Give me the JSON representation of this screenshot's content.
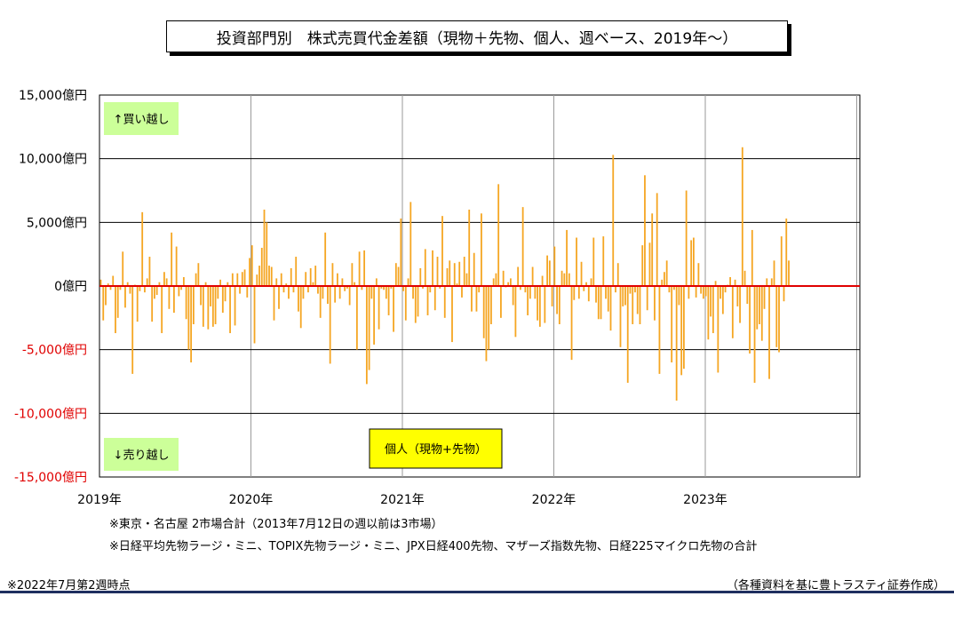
{
  "title": "投資部門別　株式売買代金差額（現物＋先物、個人、週ベース、2019年～）",
  "notes": {
    "note1": "※東京・名古屋 2市場合計（2013年7月12日の週以前は3市場）",
    "note2": "※日経平均先物ラージ・ミニ、TOPIX先物ラージ・ミニ、JPX日経400先物、マザーズ指数先物、日経225マイクロ先物の合計",
    "bottom_left": "※2022年7月第2週時点",
    "bottom_right": "（各種資料を基に豊トラスティ証券作成）"
  },
  "colors": {
    "bar": "#F5A623",
    "zero_line": "#E00000",
    "negative_label": "#E00000",
    "positive_label": "#000000",
    "buy_box": "#CCFF99",
    "series_box": "#FFFF00",
    "grid": "#000000"
  },
  "chart_data": {
    "type": "bar",
    "series": [
      {
        "name": "個人（現物+先物）"
      }
    ],
    "ylim": [
      -15000,
      15000
    ],
    "y_ticks": [
      {
        "value": 15000,
        "label": "15,000億円"
      },
      {
        "value": 10000,
        "label": "10,000億円"
      },
      {
        "value": 5000,
        "label": "5,000億円"
      },
      {
        "value": 0,
        "label": "0億円"
      },
      {
        "value": -5000,
        "label": "-5,000億円"
      },
      {
        "value": -10000,
        "label": "-10,000億円"
      },
      {
        "value": -15000,
        "label": "-15,000億円"
      }
    ],
    "x_ticks": [
      "2019年",
      "2020年",
      "2021年",
      "2022年",
      "2023年"
    ],
    "x_unit": "週",
    "annotations": {
      "buy": "↑買い越し",
      "sell": "↓売り越し",
      "series_label": "個人（現物+先物）"
    },
    "values": [
      500,
      -2700,
      -1500,
      200,
      -300,
      800,
      -3700,
      -2500,
      -300,
      2700,
      -1700,
      300,
      -600,
      -6900,
      100,
      -2800,
      -400,
      5800,
      -500,
      600,
      2300,
      -2800,
      -1000,
      -700,
      300,
      -3700,
      1100,
      600,
      -1800,
      4200,
      -2100,
      3100,
      -800,
      -300,
      700,
      -2600,
      -5000,
      -6000,
      -3000,
      1000,
      1800,
      -1500,
      -3200,
      300,
      -3400,
      -1600,
      -3200,
      -3000,
      -1000,
      500,
      -2100,
      -1200,
      300,
      -3700,
      1000,
      -3100,
      1000,
      -600,
      1100,
      1300,
      -900,
      2200,
      3200,
      -4500,
      900,
      1600,
      3000,
      6000,
      5000,
      1600,
      1500,
      -2700,
      600,
      -1800,
      1000,
      -500,
      200,
      -1000,
      1400,
      -500,
      2300,
      -2000,
      -3300,
      -1000,
      1100,
      -500,
      1400,
      300,
      1600,
      -600,
      -2500,
      -1000,
      4200,
      -1400,
      -6100,
      1800,
      -1300,
      1000,
      -1000,
      600,
      -400,
      -200,
      -1500,
      1800,
      300,
      -5000,
      2700,
      -300,
      2800,
      -7700,
      -6600,
      -1000,
      -4600,
      600,
      -3400,
      -200,
      -300,
      -1000,
      -2300,
      -200,
      -3600,
      1800,
      1500,
      5300,
      -400,
      -2700,
      600,
      6600,
      -1000,
      -2900,
      -2400,
      1400,
      -200,
      2900,
      -2300,
      -500,
      2800,
      -1900,
      2300,
      -200,
      5500,
      -2500,
      1400,
      2000,
      -4400,
      1800,
      200,
      1900,
      -900,
      2300,
      1000,
      6000,
      -2000,
      2600,
      -2000,
      -500,
      5700,
      -4100,
      -5900,
      -5000,
      -3000,
      600,
      1000,
      8000,
      -2500,
      1200,
      -100,
      300,
      600,
      -1500,
      -4000,
      1500,
      -300,
      6200,
      -500,
      -2300,
      -1000,
      1500,
      -1000,
      -2700,
      -3200,
      800,
      -2900,
      2400,
      2000,
      -1600,
      3100,
      -2200,
      -3000,
      1200,
      1000,
      4400,
      1000,
      -5800,
      -1100,
      3800,
      -1000,
      1900,
      -400,
      300,
      -1200,
      600,
      3800,
      -1300,
      -2600,
      -2600,
      3900,
      -1000,
      -2000,
      -3500,
      10300,
      -500,
      1800,
      -4800,
      -1600,
      -1500,
      -7600,
      -600,
      -3000,
      -500,
      -2200,
      -3000,
      3200,
      8700,
      -1900,
      3400,
      5700,
      -2700,
      7300,
      -6900,
      500,
      1100,
      2000,
      -500,
      -6000,
      -300,
      -9000,
      -1500,
      -7000,
      -6500,
      7500,
      -1000,
      3600,
      3800,
      -900,
      1800,
      -600,
      -1000,
      -800,
      -4200,
      -2400,
      -3700,
      400,
      -6800,
      -1000,
      -2200,
      -500,
      100,
      700,
      -4100,
      500,
      -1600,
      -2900,
      10900,
      1200,
      -1400,
      -5300,
      4400,
      -7600,
      -3400,
      -3000,
      -4300,
      -1800,
      600,
      -7300,
      600,
      2000,
      -4800,
      -5200,
      3900,
      -1200,
      5300,
      2000
    ]
  }
}
